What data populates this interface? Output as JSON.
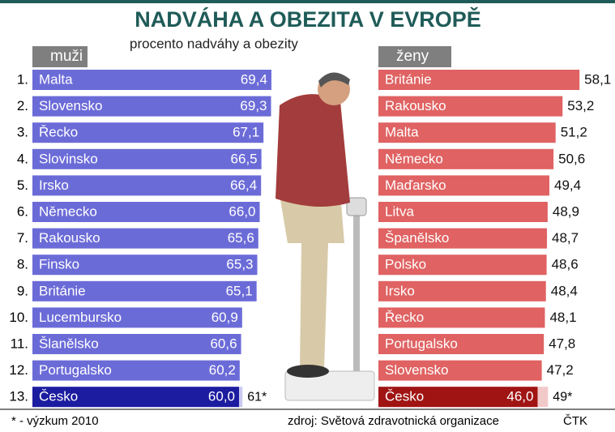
{
  "title": "NADVÁHA A OBEZITA V EVROPĚ",
  "subtitle": "procento nadváhy a obezity",
  "footnote": "* - výzkum 2010",
  "source": "zdroj: Světová zdravotnická organizace",
  "credit": "ČTK",
  "chart_data": [
    {
      "type": "bar",
      "title": "muži",
      "ranks": [
        "1.",
        "2.",
        "3.",
        "4.",
        "5.",
        "6.",
        "7.",
        "8.",
        "9.",
        "10.",
        "11.",
        "12.",
        "13."
      ],
      "categories": [
        "Malta",
        "Slovensko",
        "Řecko",
        "Slovinsko",
        "Irsko",
        "Německo",
        "Rakousko",
        "Finsko",
        "Británie",
        "Lucembursko",
        "Šlanělsko",
        "Portugalsko",
        "Česko"
      ],
      "values": [
        69.4,
        69.3,
        67.1,
        66.5,
        66.4,
        66.0,
        65.6,
        65.3,
        65.1,
        60.9,
        60.6,
        60.2,
        60.0
      ],
      "value_labels": [
        "69,4",
        "69,3",
        "67,1",
        "66,5",
        "66,4",
        "66,0",
        "65,6",
        "65,3",
        "65,1",
        "60,9",
        "60,6",
        "60,2",
        "60,0"
      ],
      "colors": [
        "#6b6bd8",
        "#6b6bd8",
        "#6b6bd8",
        "#6b6bd8",
        "#6b6bd8",
        "#6b6bd8",
        "#6b6bd8",
        "#6b6bd8",
        "#6b6bd8",
        "#6b6bd8",
        "#6b6bd8",
        "#6b6bd8",
        "#1c1ca0"
      ],
      "survey": {
        "value": 61,
        "value_label": "61*",
        "color": "#c9c9f2"
      },
      "xlim": [
        0,
        70
      ]
    },
    {
      "type": "bar",
      "title": "ženy",
      "categories": [
        "Británie",
        "Rakousko",
        "Malta",
        "Německo",
        "Maďarsko",
        "Litva",
        "Španělsko",
        "Polsko",
        "Irsko",
        "Řecko",
        "Portugalsko",
        "Slovensko",
        "Česko"
      ],
      "values": [
        58.1,
        53.2,
        51.2,
        50.6,
        49.4,
        48.9,
        48.7,
        48.6,
        48.4,
        48.1,
        47.8,
        47.2,
        46.0
      ],
      "value_labels": [
        "58,1",
        "53,2",
        "51,2",
        "50,6",
        "49,4",
        "48,9",
        "48,7",
        "48,6",
        "48,4",
        "48,1",
        "47,8",
        "47,2",
        "46,0"
      ],
      "colors": [
        "#e06262",
        "#e06262",
        "#e06262",
        "#e06262",
        "#e06262",
        "#e06262",
        "#e06262",
        "#e06262",
        "#e06262",
        "#e06262",
        "#e06262",
        "#e06262",
        "#a01414"
      ],
      "survey": {
        "value": 49,
        "value_label": "49*",
        "color": "#f2c9c9"
      },
      "xlim": [
        0,
        70
      ]
    }
  ]
}
